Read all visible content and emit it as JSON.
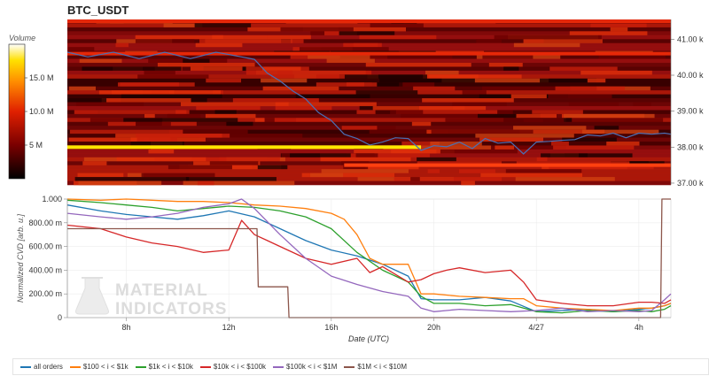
{
  "chart_data": [
    {
      "type": "heatmap",
      "title": "BTC_USDT",
      "colorbar": {
        "label": "Volume",
        "ticks": [
          "15.0 M",
          "10.0 M",
          "5 M"
        ],
        "tick_values": [
          15000000,
          10000000,
          5000000
        ],
        "range": [
          0,
          20000000
        ]
      },
      "y_axis": {
        "side": "right",
        "ticks": [
          "41.00 k",
          "40.00 k",
          "39.00 k",
          "38.00 k",
          "37.00 k"
        ],
        "tick_values": [
          41000,
          40000,
          39000,
          38000,
          37000
        ],
        "range": [
          36950,
          41550
        ]
      },
      "x_range_hours": [
        5.7,
        29.25
      ],
      "price_line": {
        "color": "#4a6fb5",
        "x": [
          5.7,
          6.5,
          7.5,
          8.5,
          9.5,
          10.5,
          11.5,
          12.5,
          13.0,
          13.5,
          14.0,
          14.5,
          15.0,
          15.5,
          16.0,
          16.5,
          17.0,
          17.5,
          18.0,
          18.5,
          19.0,
          19.5,
          20.0,
          20.5,
          21.0,
          21.5,
          22.0,
          22.5,
          23.0,
          23.5,
          24.0,
          24.5,
          25.0,
          25.5,
          26.0,
          26.5,
          27.0,
          27.5,
          28.0,
          28.5,
          29.0,
          29.25
        ],
        "y": [
          40600,
          40550,
          40600,
          40500,
          40600,
          40500,
          40600,
          40550,
          40400,
          40100,
          39800,
          39600,
          39300,
          39000,
          38700,
          38400,
          38200,
          38100,
          38100,
          38300,
          38200,
          37950,
          38000,
          38050,
          38100,
          38000,
          38200,
          38150,
          38100,
          37850,
          38100,
          38200,
          38150,
          38250,
          38300,
          38350,
          38350,
          38300,
          38350,
          38400,
          38350,
          38400
        ]
      },
      "bright_levels": [
        {
          "price": 38000,
          "from_hour": 5.7,
          "to_hour": 19.5,
          "volume": 16000000
        },
        {
          "price": 37500,
          "from_hour": 16.5,
          "to_hour": 29.25,
          "volume": 7000000
        },
        {
          "price": 41500,
          "from_hour": 5.7,
          "to_hour": 29.25,
          "volume": 6000000
        },
        {
          "price": 40600,
          "from_hour": 5.7,
          "to_hour": 29.25,
          "volume": 4000000
        }
      ]
    },
    {
      "type": "line",
      "xlabel": "Date (UTC)",
      "ylabel": "Normalized CVD [arb. u.]",
      "x_ticks": [
        "8h",
        "12h",
        "16h",
        "20h",
        "4/27",
        "4h"
      ],
      "x_tick_values": [
        8,
        12,
        16,
        20,
        24,
        28
      ],
      "y_ticks": [
        "1.000",
        "800.00 m",
        "600.00 m",
        "400.00 m",
        "200.00 m",
        "0"
      ],
      "y_tick_values": [
        1,
        0.8,
        0.6,
        0.4,
        0.2,
        0
      ],
      "xlim": [
        5.7,
        29.25
      ],
      "ylim": [
        0,
        1
      ],
      "legend_placement": "bottom",
      "series": [
        {
          "name": "all orders",
          "color": "#1f77b4",
          "x": [
            5.7,
            7,
            8,
            9,
            10,
            11,
            12,
            13,
            14,
            15,
            16,
            17,
            18,
            19,
            19.5,
            20,
            21,
            22,
            23,
            24,
            25,
            26,
            27,
            28,
            28.5,
            29,
            29.25
          ],
          "y": [
            0.95,
            0.9,
            0.87,
            0.85,
            0.83,
            0.86,
            0.9,
            0.85,
            0.75,
            0.65,
            0.57,
            0.52,
            0.45,
            0.35,
            0.16,
            0.15,
            0.15,
            0.17,
            0.14,
            0.05,
            0.06,
            0.07,
            0.05,
            0.07,
            0.08,
            0.1,
            0.12
          ]
        },
        {
          "name": "$100 < i < $1k",
          "color": "#ff7f0e",
          "x": [
            5.7,
            7,
            8,
            9,
            10,
            11,
            12,
            13,
            14,
            15,
            16,
            16.5,
            17,
            17.5,
            18,
            19,
            19.5,
            20,
            21,
            22,
            23,
            23.5,
            24,
            25,
            26,
            27,
            28,
            28.5,
            29,
            29.25
          ],
          "y": [
            1.0,
            0.99,
            1.0,
            0.99,
            0.98,
            0.98,
            0.97,
            0.95,
            0.94,
            0.92,
            0.88,
            0.83,
            0.7,
            0.5,
            0.45,
            0.45,
            0.2,
            0.2,
            0.18,
            0.17,
            0.16,
            0.16,
            0.1,
            0.08,
            0.07,
            0.06,
            0.08,
            0.08,
            0.1,
            0.12
          ]
        },
        {
          "name": "$1k < i < $10k",
          "color": "#2ca02c",
          "x": [
            5.7,
            7,
            8,
            9,
            10,
            11,
            12,
            13,
            14,
            15,
            16,
            17,
            18,
            19,
            19.5,
            20,
            21,
            22,
            23,
            24,
            25,
            26,
            27,
            28,
            28.5,
            29,
            29.25
          ],
          "y": [
            0.99,
            0.97,
            0.95,
            0.93,
            0.9,
            0.92,
            0.94,
            0.93,
            0.9,
            0.85,
            0.75,
            0.55,
            0.4,
            0.3,
            0.18,
            0.12,
            0.12,
            0.1,
            0.11,
            0.05,
            0.04,
            0.06,
            0.05,
            0.06,
            0.05,
            0.07,
            0.1
          ]
        },
        {
          "name": "$10k < i < $100k",
          "color": "#d62728",
          "x": [
            5.7,
            7,
            8,
            9,
            10,
            11,
            12,
            12.5,
            13,
            13.5,
            14,
            15,
            16,
            17,
            17.5,
            18,
            19,
            19.5,
            20,
            20.5,
            21,
            22,
            23,
            23.5,
            24,
            25,
            26,
            27,
            28,
            28.5,
            29,
            29.25
          ],
          "y": [
            0.78,
            0.75,
            0.68,
            0.63,
            0.6,
            0.55,
            0.57,
            0.82,
            0.7,
            0.65,
            0.6,
            0.5,
            0.45,
            0.5,
            0.38,
            0.43,
            0.3,
            0.32,
            0.37,
            0.4,
            0.42,
            0.38,
            0.4,
            0.3,
            0.15,
            0.12,
            0.1,
            0.1,
            0.13,
            0.13,
            0.12,
            0.15
          ]
        },
        {
          "name": "$100k < i < $1M",
          "color": "#9467bd",
          "x": [
            5.7,
            7,
            8,
            9,
            10,
            11,
            12,
            12.5,
            13,
            14,
            15,
            16,
            17,
            18,
            19,
            19.5,
            20,
            21,
            22,
            23,
            24,
            25,
            26,
            27,
            28,
            28.5,
            29,
            29.25
          ],
          "y": [
            0.88,
            0.85,
            0.83,
            0.85,
            0.88,
            0.93,
            0.96,
            1.0,
            0.92,
            0.7,
            0.5,
            0.35,
            0.28,
            0.22,
            0.18,
            0.08,
            0.05,
            0.07,
            0.06,
            0.05,
            0.06,
            0.08,
            0.05,
            0.06,
            0.05,
            0.06,
            0.15,
            0.2
          ]
        },
        {
          "name": "$1M < i < $10M",
          "color": "#8c564b",
          "x": [
            5.7,
            13.1,
            13.15,
            14.3,
            14.35,
            28.85,
            28.9,
            29.25
          ],
          "y": [
            0.75,
            0.75,
            0.26,
            0.26,
            0.0,
            0.0,
            1.0,
            1.0
          ]
        }
      ]
    }
  ],
  "watermark": {
    "line1": "MATERIAL",
    "line2": "INDICATORS"
  }
}
